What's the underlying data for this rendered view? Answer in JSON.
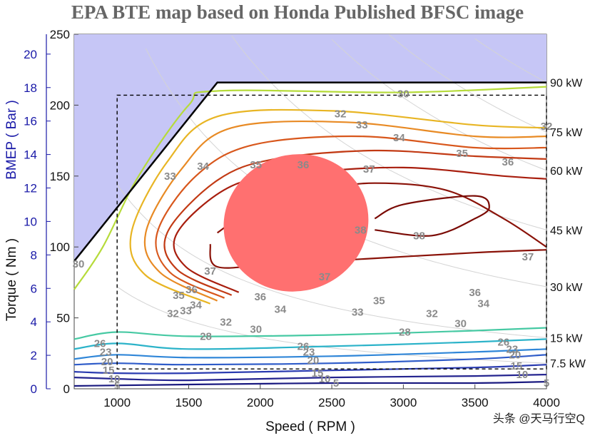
{
  "chart_data": {
    "type": "contour",
    "title": "EPA BTE map based on Honda Published BFSC image",
    "xlabel": "Speed ( RPM )",
    "ylabel_left": "Torque ( Nm )",
    "ylabel_blue": "BMEP ( Bar )",
    "xlim": [
      700,
      4000
    ],
    "ylim": [
      0,
      250
    ],
    "x_ticks": [
      1000,
      1500,
      2000,
      2500,
      3000,
      3500,
      4000
    ],
    "y_ticks": [
      0,
      50,
      100,
      150,
      200,
      250
    ],
    "bmep_ticks": [
      0,
      2,
      4,
      6,
      8,
      10,
      12,
      14,
      16,
      18,
      20
    ],
    "power_labels": [
      {
        "label": "90 kW",
        "torque": 216
      },
      {
        "label": "75 kW",
        "torque": 181
      },
      {
        "label": "60 kW",
        "torque": 154
      },
      {
        "label": "45 kW",
        "torque": 112
      },
      {
        "label": "30 kW",
        "torque": 72
      },
      {
        "label": "15 kW",
        "torque": 36
      },
      {
        "label": "7.5 kW",
        "torque": 18
      }
    ],
    "wot_line": [
      [
        700,
        90
      ],
      [
        1700,
        216
      ],
      [
        4000,
        216
      ]
    ],
    "boundary_box": {
      "rpm": [
        1000,
        4000
      ],
      "torque": [
        14,
        207
      ]
    },
    "contours": [
      {
        "level": "5",
        "color": "#1a1a80",
        "points": [
          [
            700,
            2
          ],
          [
            1500,
            3
          ],
          [
            2500,
            4
          ],
          [
            3500,
            4
          ],
          [
            4000,
            5
          ]
        ]
      },
      {
        "level": "10",
        "color": "#24248f",
        "points": [
          [
            700,
            8
          ],
          [
            1000,
            7
          ],
          [
            1500,
            6
          ],
          [
            2500,
            8
          ],
          [
            3500,
            9
          ],
          [
            4000,
            10
          ]
        ]
      },
      {
        "level": "15",
        "color": "#2a3bb0",
        "points": [
          [
            700,
            12
          ],
          [
            1000,
            11
          ],
          [
            1500,
            11
          ],
          [
            2500,
            13
          ],
          [
            3500,
            15
          ],
          [
            4000,
            17
          ]
        ]
      },
      {
        "level": "20",
        "color": "#2f5cc9",
        "points": [
          [
            700,
            17
          ],
          [
            1000,
            18
          ],
          [
            1500,
            17
          ],
          [
            2500,
            18
          ],
          [
            3500,
            21
          ],
          [
            4000,
            24
          ]
        ]
      },
      {
        "level": "23",
        "color": "#2f86d8",
        "points": [
          [
            700,
            21
          ],
          [
            1000,
            24
          ],
          [
            1500,
            22
          ],
          [
            2500,
            23
          ],
          [
            3500,
            26
          ],
          [
            4000,
            28
          ]
        ]
      },
      {
        "level": "26",
        "color": "#2cb3c9",
        "points": [
          [
            700,
            28
          ],
          [
            1000,
            32
          ],
          [
            1500,
            28
          ],
          [
            2500,
            30
          ],
          [
            3500,
            33
          ],
          [
            4000,
            35
          ]
        ]
      },
      {
        "level": "28",
        "color": "#46c9a3",
        "points": [
          [
            700,
            35
          ],
          [
            1000,
            40
          ],
          [
            1500,
            37
          ],
          [
            2500,
            38
          ],
          [
            3500,
            41
          ],
          [
            4000,
            43
          ]
        ]
      },
      {
        "level": "30",
        "color": "#b6db3a",
        "points": [
          [
            700,
            70
          ],
          [
            900,
            100
          ],
          [
            1150,
            150
          ],
          [
            1500,
            200
          ],
          [
            1700,
            210
          ],
          [
            3000,
            209
          ],
          [
            4000,
            213
          ]
        ]
      },
      {
        "level": "32",
        "color": "#e8b524",
        "points": [
          [
            1650,
            60
          ],
          [
            1200,
            80
          ],
          [
            1100,
            110
          ],
          [
            1350,
            160
          ],
          [
            1700,
            192
          ],
          [
            2500,
            196
          ],
          [
            3500,
            186
          ],
          [
            4000,
            184
          ]
        ]
      },
      {
        "level": "33",
        "color": "#e88a24",
        "points": [
          [
            1700,
            62
          ],
          [
            1300,
            82
          ],
          [
            1200,
            110
          ],
          [
            1450,
            155
          ],
          [
            1800,
            184
          ],
          [
            2600,
            188
          ],
          [
            3500,
            178
          ],
          [
            4000,
            178
          ]
        ]
      },
      {
        "level": "34",
        "color": "#d8571c",
        "points": [
          [
            1750,
            64
          ],
          [
            1370,
            82
          ],
          [
            1280,
            110
          ],
          [
            1550,
            150
          ],
          [
            1950,
            172
          ],
          [
            2700,
            178
          ],
          [
            3500,
            170
          ],
          [
            4000,
            170
          ]
        ]
      },
      {
        "level": "35",
        "color": "#c23a14",
        "points": [
          [
            1800,
            66
          ],
          [
            1420,
            84
          ],
          [
            1350,
            110
          ],
          [
            1700,
            147
          ],
          [
            2100,
            162
          ],
          [
            2800,
            168
          ],
          [
            3500,
            164
          ],
          [
            4000,
            162
          ]
        ]
      },
      {
        "level": "36",
        "color": "#a81e0e",
        "points": [
          [
            1850,
            68
          ],
          [
            1480,
            86
          ],
          [
            1420,
            110
          ],
          [
            1800,
            143
          ],
          [
            2300,
            152
          ],
          [
            3000,
            156
          ],
          [
            3700,
            150
          ],
          [
            4000,
            148
          ]
        ]
      },
      {
        "level": "37",
        "color": "#8a1208",
        "points": [
          [
            1700,
            110
          ],
          [
            2000,
            130
          ],
          [
            2400,
            140
          ],
          [
            2800,
            145
          ],
          [
            3300,
            140
          ],
          [
            3700,
            120
          ],
          [
            4000,
            100
          ]
        ]
      },
      {
        "level": "37",
        "color": "#8a1208",
        "points": [
          [
            1650,
            102
          ],
          [
            1700,
            86
          ],
          [
            2100,
            88
          ],
          [
            2800,
            92
          ],
          [
            3500,
            96
          ],
          [
            4000,
            98
          ]
        ]
      },
      {
        "level": "38",
        "color": "#7a0a04",
        "points": [
          [
            2800,
            120
          ],
          [
            3000,
            130
          ],
          [
            3500,
            136
          ],
          [
            3600,
            128
          ],
          [
            3500,
            120
          ],
          [
            3200,
            108
          ],
          [
            2800,
            112
          ]
        ]
      }
    ],
    "contour_labels": [
      {
        "text": "30",
        "rpm": 3000,
        "torque": 208
      },
      {
        "text": "32",
        "rpm": 2560,
        "torque": 194
      },
      {
        "text": "33",
        "rpm": 2710,
        "torque": 186
      },
      {
        "text": "34",
        "rpm": 2970,
        "torque": 177
      },
      {
        "text": "35",
        "rpm": 3410,
        "torque": 166
      },
      {
        "text": "36",
        "rpm": 3730,
        "torque": 160
      },
      {
        "text": "32",
        "rpm": 4000,
        "torque": 185
      },
      {
        "text": "33",
        "rpm": 1370,
        "torque": 150
      },
      {
        "text": "34",
        "rpm": 1600,
        "torque": 157
      },
      {
        "text": "35",
        "rpm": 1970,
        "torque": 158
      },
      {
        "text": "36",
        "rpm": 2300,
        "torque": 158
      },
      {
        "text": "37",
        "rpm": 2760,
        "torque": 155
      },
      {
        "text": "38",
        "rpm": 2700,
        "torque": 112
      },
      {
        "text": "38",
        "rpm": 3110,
        "torque": 108
      },
      {
        "text": "37",
        "rpm": 3870,
        "torque": 93
      },
      {
        "text": "37",
        "rpm": 1650,
        "torque": 83
      },
      {
        "text": "37",
        "rpm": 2450,
        "torque": 79
      },
      {
        "text": "36",
        "rpm": 1520,
        "torque": 70
      },
      {
        "text": "36",
        "rpm": 2000,
        "torque": 65
      },
      {
        "text": "36",
        "rpm": 3500,
        "torque": 68
      },
      {
        "text": "35",
        "rpm": 1430,
        "torque": 66
      },
      {
        "text": "35",
        "rpm": 2830,
        "torque": 62
      },
      {
        "text": "34",
        "rpm": 1550,
        "torque": 59
      },
      {
        "text": "34",
        "rpm": 2140,
        "torque": 56
      },
      {
        "text": "34",
        "rpm": 3560,
        "torque": 60
      },
      {
        "text": "33",
        "rpm": 1480,
        "torque": 55
      },
      {
        "text": "33",
        "rpm": 2680,
        "torque": 54
      },
      {
        "text": "32",
        "rpm": 1390,
        "torque": 53
      },
      {
        "text": "32",
        "rpm": 1760,
        "torque": 47
      },
      {
        "text": "32",
        "rpm": 3200,
        "torque": 53
      },
      {
        "text": "30",
        "rpm": 1970,
        "torque": 42
      },
      {
        "text": "30",
        "rpm": 3400,
        "torque": 46
      },
      {
        "text": "30",
        "rpm": 730,
        "torque": 88
      },
      {
        "text": "28",
        "rpm": 1620,
        "torque": 37
      },
      {
        "text": "28",
        "rpm": 3010,
        "torque": 40
      },
      {
        "text": "26",
        "rpm": 880,
        "torque": 32
      },
      {
        "text": "26",
        "rpm": 2300,
        "torque": 30
      },
      {
        "text": "26",
        "rpm": 3700,
        "torque": 33
      },
      {
        "text": "23",
        "rpm": 920,
        "torque": 26
      },
      {
        "text": "23",
        "rpm": 2340,
        "torque": 26
      },
      {
        "text": "23",
        "rpm": 3760,
        "torque": 28
      },
      {
        "text": "20",
        "rpm": 930,
        "torque": 19
      },
      {
        "text": "20",
        "rpm": 2370,
        "torque": 20
      },
      {
        "text": "20",
        "rpm": 3780,
        "torque": 24
      },
      {
        "text": "15",
        "rpm": 940,
        "torque": 13
      },
      {
        "text": "15",
        "rpm": 2400,
        "torque": 11
      },
      {
        "text": "15",
        "rpm": 3790,
        "torque": 16
      },
      {
        "text": "10",
        "rpm": 980,
        "torque": 7
      },
      {
        "text": "10",
        "rpm": 2450,
        "torque": 7
      },
      {
        "text": "10",
        "rpm": 3830,
        "torque": 10
      },
      {
        "text": "5",
        "rpm": 1000,
        "torque": 2
      },
      {
        "text": "5",
        "rpm": 2530,
        "torque": 4
      },
      {
        "text": "5",
        "rpm": 4000,
        "torque": 4
      }
    ],
    "highlight_ellipse": {
      "center_rpm": 2250,
      "center_torque": 117,
      "rx_rpm": 510,
      "ry_torque": 48,
      "rotation_deg": -21,
      "color": "#ff7070"
    },
    "grid": false
  },
  "watermark": "头条 @天马行空Q"
}
